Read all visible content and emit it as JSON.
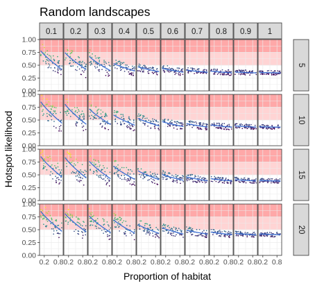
{
  "chart_data": {
    "type": "scatter",
    "title": "Random landscapes",
    "xlabel": "Proportion of habitat",
    "ylabel": "Hotspot likelihood",
    "col_facets": [
      "0.1",
      "0.2",
      "0.3",
      "0.4",
      "0.5",
      "0.6",
      "0.7",
      "0.8",
      "0.9",
      "1"
    ],
    "row_facets": [
      "5",
      "10",
      "15",
      "20"
    ],
    "x_ticks": [
      "0.2",
      "0.8"
    ],
    "y_ticks": [
      "0.00",
      "0.25",
      "0.50",
      "0.75",
      "1.00"
    ],
    "xlim": [
      0,
      1
    ],
    "ylim": [
      0,
      1
    ],
    "grid": true,
    "shaded_bands": [
      {
        "y0": 0.75,
        "y1": 1.0,
        "color": "#ff9999"
      },
      {
        "y0": 0.5,
        "y1": 0.75,
        "color": "#ffcccc"
      }
    ],
    "point_colormap": [
      "#440154",
      "#3b528b",
      "#21908c",
      "#5dc963",
      "#fde725"
    ],
    "trend_color": "#3b6fd4",
    "facet_trends": [
      {
        "row": "5",
        "peak": [
          0.82,
          0.78,
          0.7,
          0.55,
          0.48,
          0.45,
          0.41,
          0.39,
          0.37,
          0.36
        ],
        "end": [
          0.4,
          0.4,
          0.38,
          0.38,
          0.37,
          0.36,
          0.36,
          0.35,
          0.35,
          0.35
        ]
      },
      {
        "row": "10",
        "peak": [
          0.9,
          0.85,
          0.75,
          0.62,
          0.55,
          0.48,
          0.44,
          0.41,
          0.39,
          0.37
        ],
        "end": [
          0.42,
          0.4,
          0.4,
          0.39,
          0.38,
          0.37,
          0.36,
          0.36,
          0.36,
          0.36
        ]
      },
      {
        "row": "15",
        "peak": [
          0.9,
          0.88,
          0.8,
          0.7,
          0.6,
          0.52,
          0.47,
          0.43,
          0.41,
          0.39
        ],
        "end": [
          0.44,
          0.42,
          0.41,
          0.4,
          0.4,
          0.39,
          0.38,
          0.38,
          0.38,
          0.38
        ]
      },
      {
        "row": "20",
        "peak": [
          0.9,
          0.85,
          0.8,
          0.72,
          0.62,
          0.55,
          0.5,
          0.46,
          0.43,
          0.42
        ],
        "end": [
          0.45,
          0.44,
          0.43,
          0.42,
          0.42,
          0.41,
          0.41,
          0.4,
          0.4,
          0.4
        ]
      }
    ]
  }
}
